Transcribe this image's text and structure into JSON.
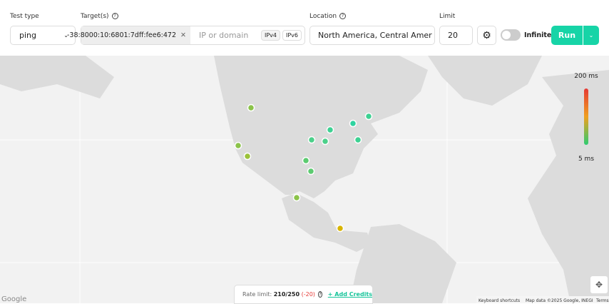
{
  "toolbar": {
    "test_type": {
      "label": "Test type",
      "value": "ping"
    },
    "targets": {
      "label": "Target(s)",
      "value": "-38:8000:10:6801:7dff:fee6:472",
      "placeholder": "IP or domain",
      "ipv4": "IPv4",
      "ipv6": "IPv6"
    },
    "location": {
      "label": "Location",
      "value": "North America, Central Amer"
    },
    "limit": {
      "label": "Limit",
      "value": "20"
    },
    "infinite": "Infinite",
    "run": "Run"
  },
  "legend": {
    "max": "200 ms",
    "min": "5 ms"
  },
  "rate_limit": {
    "label": "Rate limit:",
    "value": "210/250",
    "delta": "(-20)",
    "add_credits": "+ Add Credits"
  },
  "map_footer": {
    "logo": "Google",
    "shortcuts": "Keyboard shortcuts",
    "map_data": "Map data ©2025 Google, INEGI",
    "terms": "Terms"
  }
}
